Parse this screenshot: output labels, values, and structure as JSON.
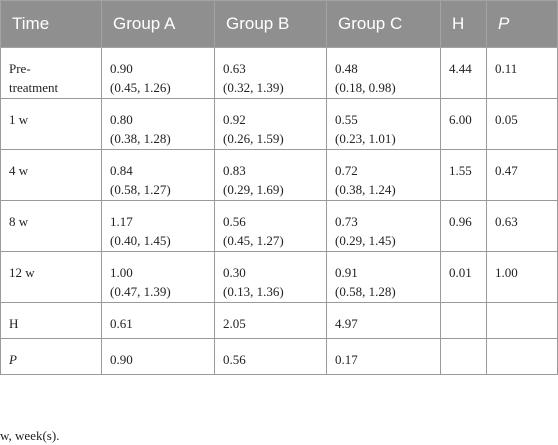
{
  "header": [
    "Time",
    "Group A",
    "Group B",
    "Group C",
    "H",
    "P"
  ],
  "rows": [
    {
      "time": "Pre-\ntreatment",
      "a": [
        "0.90",
        "(0.45, 1.26)"
      ],
      "b": [
        "0.63",
        "(0.32, 1.39)"
      ],
      "c": [
        "0.48",
        "(0.18, 0.98)"
      ],
      "h": "4.44",
      "p": "0.11"
    },
    {
      "time": "1 w",
      "a": [
        "0.80",
        "(0.38, 1.28)"
      ],
      "b": [
        "0.92",
        "(0.26, 1.59)"
      ],
      "c": [
        "0.55",
        "(0.23, 1.01)"
      ],
      "h": "6.00",
      "p": "0.05"
    },
    {
      "time": "4 w",
      "a": [
        "0.84",
        "(0.58, 1.27)"
      ],
      "b": [
        "0.83",
        "(0.29, 1.69)"
      ],
      "c": [
        "0.72",
        "(0.38, 1.24)"
      ],
      "h": "1.55",
      "p": "0.47"
    },
    {
      "time": "8 w",
      "a": [
        "1.17",
        "(0.40, 1.45)"
      ],
      "b": [
        "0.56",
        "(0.45, 1.27)"
      ],
      "c": [
        "0.73",
        "(0.29, 1.45)"
      ],
      "h": "0.96",
      "p": "0.63"
    },
    {
      "time": "12 w",
      "a": [
        "1.00",
        "(0.47, 1.39)"
      ],
      "b": [
        "0.30",
        "(0.13, 1.36)"
      ],
      "c": [
        "0.91",
        "(0.58, 1.28)"
      ],
      "h": "0.01",
      "p": "1.00"
    }
  ],
  "summary": [
    {
      "label": "H",
      "a": "0.61",
      "b": "2.05",
      "c": "4.97"
    },
    {
      "label": "P",
      "a": "0.90",
      "b": "0.56",
      "c": "0.17"
    }
  ],
  "footnote": "w, week(s)."
}
